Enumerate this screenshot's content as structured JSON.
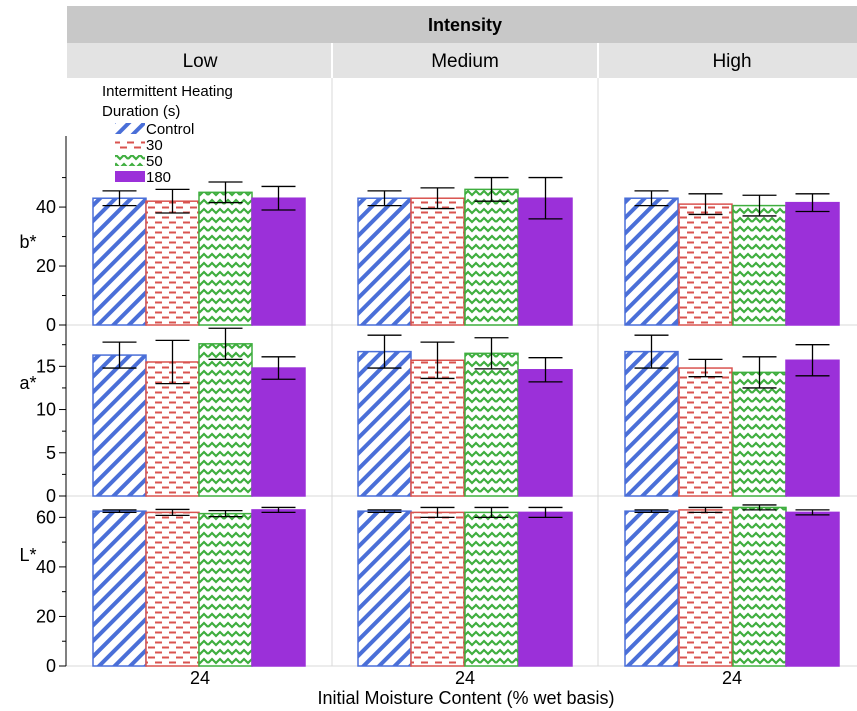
{
  "colors": {
    "control": "#4a6fd8",
    "d30": "#d9534f",
    "d50": "#3fae3f",
    "d180": "#9b30d9",
    "header_dark": "#c8c8c8",
    "header_light": "#e3e3e3"
  },
  "chart_data": {
    "type": "bar",
    "title": "Intensity",
    "xlabel": "Initial Moisture Content (% wet basis)",
    "x_category": "24",
    "intensities": [
      "Low",
      "Medium",
      "High"
    ],
    "legend": {
      "title_line1": "Intermittent Heating",
      "title_line2": "Duration (s)",
      "placement": "top-left",
      "entries": [
        "Control",
        "30",
        "50",
        "180"
      ]
    },
    "grid": false,
    "rows": [
      {
        "metric": "b*",
        "ylim": [
          0,
          58
        ],
        "ticks": [
          0,
          20,
          40
        ],
        "values": [
          [
            {
              "mean": 43,
              "err": 2.5
            },
            {
              "mean": 42,
              "err": 4.0
            },
            {
              "mean": 45,
              "err": 3.5
            },
            {
              "mean": 43,
              "err": 4.0
            }
          ],
          [
            {
              "mean": 43,
              "err": 2.5
            },
            {
              "mean": 43,
              "err": 3.5
            },
            {
              "mean": 46,
              "err": 4.0
            },
            {
              "mean": 43,
              "err": 7.0
            }
          ],
          [
            {
              "mean": 43,
              "err": 2.5
            },
            {
              "mean": 41,
              "err": 3.5
            },
            {
              "mean": 40.5,
              "err": 3.5
            },
            {
              "mean": 41.5,
              "err": 3.0
            }
          ]
        ]
      },
      {
        "metric": "a*",
        "ylim": [
          0,
          19.2
        ],
        "ticks": [
          0,
          5,
          10,
          15
        ],
        "values": [
          [
            {
              "mean": 16.3,
              "err": 1.5
            },
            {
              "mean": 15.5,
              "err": 2.5
            },
            {
              "mean": 17.6,
              "err": 1.8
            },
            {
              "mean": 14.8,
              "err": 1.3
            }
          ],
          [
            {
              "mean": 16.7,
              "err": 1.9
            },
            {
              "mean": 15.7,
              "err": 2.1
            },
            {
              "mean": 16.5,
              "err": 1.8
            },
            {
              "mean": 14.6,
              "err": 1.4
            }
          ],
          [
            {
              "mean": 16.7,
              "err": 1.9
            },
            {
              "mean": 14.8,
              "err": 1.0
            },
            {
              "mean": 14.3,
              "err": 1.8
            },
            {
              "mean": 15.7,
              "err": 1.8
            }
          ]
        ]
      },
      {
        "metric": "L*",
        "ylim": [
          0,
          67
        ],
        "ticks": [
          0,
          20,
          40,
          60
        ],
        "values": [
          [
            {
              "mean": 62.5,
              "err": 0.5
            },
            {
              "mean": 62.0,
              "err": 1.2
            },
            {
              "mean": 61.5,
              "err": 1.2
            },
            {
              "mean": 63.0,
              "err": 1.0
            }
          ],
          [
            {
              "mean": 62.5,
              "err": 0.5
            },
            {
              "mean": 62.0,
              "err": 2.0
            },
            {
              "mean": 62.0,
              "err": 2.0
            },
            {
              "mean": 62.0,
              "err": 2.0
            }
          ],
          [
            {
              "mean": 62.5,
              "err": 0.5
            },
            {
              "mean": 63.0,
              "err": 1.0
            },
            {
              "mean": 64.0,
              "err": 1.0
            },
            {
              "mean": 62.0,
              "err": 1.0
            }
          ]
        ]
      }
    ]
  }
}
